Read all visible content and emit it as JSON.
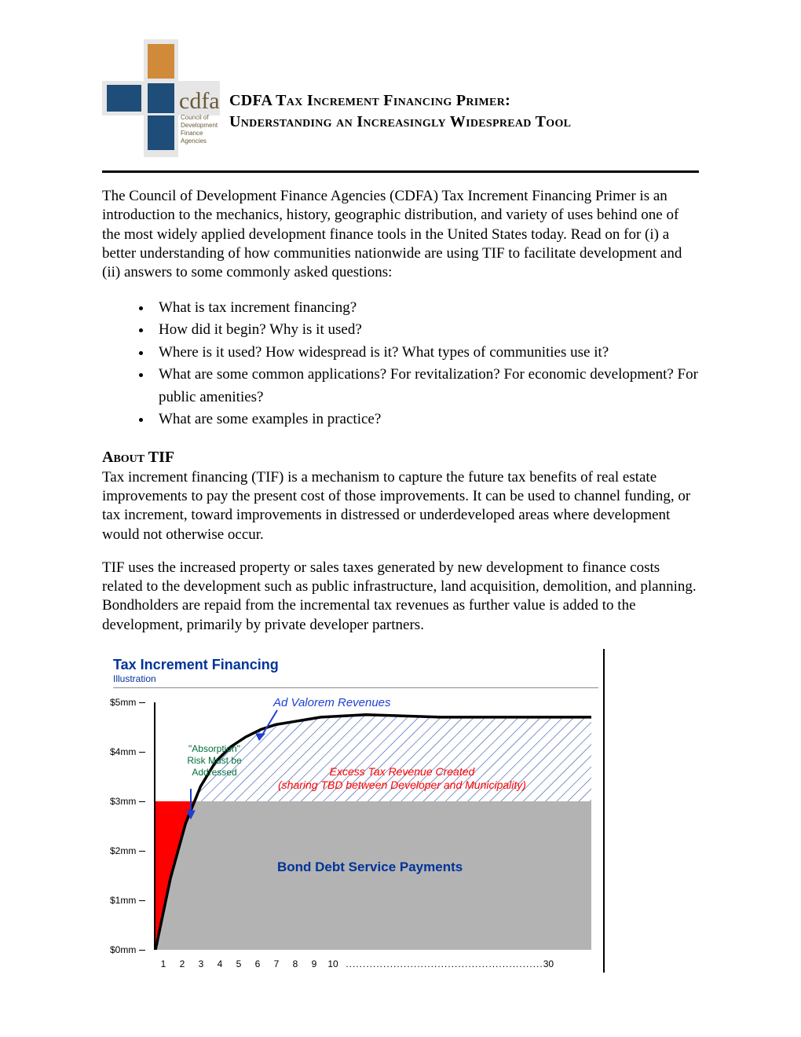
{
  "header": {
    "title_line1": "CDFA Tax Increment Financing Primer:",
    "title_line2": "Understanding an Increasingly Widespread Tool",
    "logo": {
      "name": "cdfa",
      "subtitle_lines": [
        "Council of",
        "Development",
        "Finance",
        "Agencies"
      ],
      "colors": {
        "orange": "#d08a3a",
        "navy": "#1d4d78",
        "light": "#e6e6e6",
        "text": "#6b5b3a"
      }
    }
  },
  "intro": "The Council of Development Finance Agencies (CDFA) Tax Increment Financing Primer is an introduction to the mechanics, history, geographic distribution, and variety of uses behind one of the most widely applied development finance tools in the United States today. Read on for (i) a better understanding of how communities nationwide are using TIF to facilitate development and (ii) answers to some commonly asked questions:",
  "bullets": [
    "What is tax increment financing?",
    "How did it begin? Why is it used?",
    "Where is it used? How widespread is it? What types of communities use it?",
    "What are some common applications? For revitalization? For economic development? For public amenities?",
    "What are some examples in practice?"
  ],
  "section": {
    "heading": "About TIF",
    "para1": "Tax increment financing (TIF) is a mechanism to capture the future tax benefits of real estate improvements to pay the present cost of those improvements. It can be used to channel funding, or tax increment, toward improvements in distressed or underdeveloped areas where development would not otherwise occur.",
    "para2": "TIF uses the increased property or sales taxes generated by new development to finance costs related to the development such as public infrastructure, land acquisition, demolition, and planning.  Bondholders are repaid from the incremental tax revenues as further value is added to the development, primarily by private developer partners."
  },
  "chart": {
    "title": "Tax Increment Financing",
    "subtitle": "Illustration",
    "y_ticks": [
      "$0mm",
      "$1mm",
      "$2mm",
      "$3mm",
      "$4mm",
      "$5mm"
    ],
    "y_max": 5,
    "x_ticks": [
      "1",
      "2",
      "3",
      "4",
      "5",
      "6",
      "7",
      "8",
      "9",
      "10"
    ],
    "x_end_label": "30",
    "x_max": 30,
    "curve": [
      {
        "x": 1,
        "y": 0
      },
      {
        "x": 2,
        "y": 1.45
      },
      {
        "x": 3,
        "y": 2.55
      },
      {
        "x": 4,
        "y": 3.3
      },
      {
        "x": 5,
        "y": 3.8
      },
      {
        "x": 6,
        "y": 4.1
      },
      {
        "x": 7,
        "y": 4.3
      },
      {
        "x": 8,
        "y": 4.45
      },
      {
        "x": 9,
        "y": 4.55
      },
      {
        "x": 10,
        "y": 4.6
      },
      {
        "x": 12,
        "y": 4.7
      },
      {
        "x": 15,
        "y": 4.75
      },
      {
        "x": 20,
        "y": 4.7
      },
      {
        "x": 30,
        "y": 4.7
      }
    ],
    "grey_level": 3,
    "red_cutoff_x": 3.6,
    "colors": {
      "curve": "#000000",
      "grey_fill": "#b3b3b3",
      "red_fill": "#ff0000",
      "hatch": "#2b4ea8",
      "title": "#003399",
      "label_blue": "#1f3fd4",
      "label_red": "#ff0000",
      "label_green": "#006d3a"
    },
    "line_width": 3.5,
    "annotations": {
      "ad_valorem": "Ad Valorem Revenues",
      "absorption": "\"Absorption\" Risk Must be Addressed",
      "excess_line1": "Excess Tax Revenue Created",
      "excess_line2": "(sharing TBD between Developer and Municipality)",
      "bond": "Bond Debt Service Payments"
    },
    "fonts": {
      "title_size": 18,
      "subtitle_size": 12,
      "tick_size": 12,
      "annot_size": 14,
      "annot_small": 12,
      "bond_size": 17
    }
  }
}
